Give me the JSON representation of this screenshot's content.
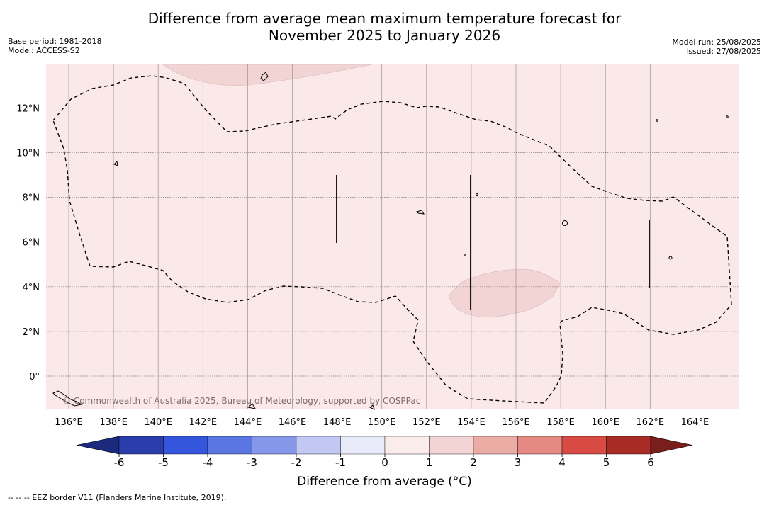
{
  "title": {
    "line1": "Difference from average mean maximum temperature forecast for",
    "line2": "November 2025 to January 2026"
  },
  "meta": {
    "base_period": "Base period: 1981-2018",
    "model": "Model: ACCESS-S2",
    "model_run": "Model run: 25/08/2025",
    "issued": "Issued: 27/08/2025"
  },
  "map": {
    "lon_range": [
      135.0,
      166.0
    ],
    "lat_range": [
      -1.5,
      14.0
    ],
    "lon_ticks": [
      "136°E",
      "138°E",
      "140°E",
      "142°E",
      "144°E",
      "146°E",
      "148°E",
      "150°E",
      "152°E",
      "154°E",
      "156°E",
      "158°E",
      "160°E",
      "162°E",
      "164°E"
    ],
    "lat_ticks": [
      "12°N",
      "10°N",
      "8°N",
      "6°N",
      "4°N",
      "2°N",
      "0°"
    ],
    "background_anomaly_color": "#fbe9e9",
    "patch_color": "#f2d4d4",
    "copyright": "© Commonwealth of Australia 2025, Bureau of Meteorology, supported by COSPPac"
  },
  "colorbar": {
    "title": "Difference from average (°C)",
    "tick_labels": [
      "-6",
      "-5",
      "-4",
      "-3",
      "-2",
      "-1",
      "0",
      "1",
      "2",
      "3",
      "4",
      "5",
      "6"
    ],
    "colors": [
      "#2b3dab",
      "#3456dc",
      "#5a76e0",
      "#8497e8",
      "#c1c8f4",
      "#e9ebfb",
      "#fbecec",
      "#f2d4d4",
      "#ecaca6",
      "#e58a82",
      "#d84a44",
      "#a92b26"
    ],
    "low_extend_color": "#1c2a7e",
    "high_extend_color": "#7a1e1c"
  },
  "footnote": "--  --  -- EEZ border V11 (Flanders Marine Institute, 2019)."
}
